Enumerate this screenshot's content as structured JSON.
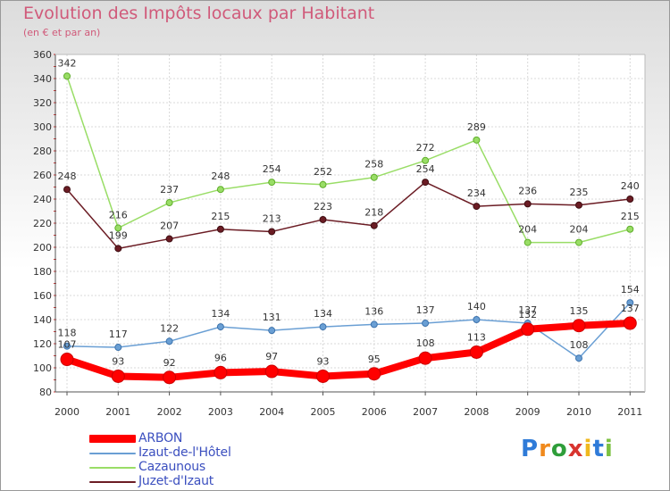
{
  "header": {
    "title": "Evolution des Impôts locaux par Habitant",
    "subtitle": "(en € et par an)"
  },
  "logo": {
    "text": "Proxiti"
  },
  "chart_data": {
    "type": "line",
    "title": "Evolution des Impôts locaux par Habitant",
    "subtitle": "(en € et par an)",
    "xlabel": "",
    "ylabel": "",
    "categories": [
      "2000",
      "2001",
      "2002",
      "2003",
      "2004",
      "2005",
      "2006",
      "2007",
      "2008",
      "2009",
      "2010",
      "2011"
    ],
    "ylim": [
      80,
      360
    ],
    "yticks": [
      80,
      100,
      120,
      140,
      160,
      180,
      200,
      220,
      240,
      260,
      280,
      300,
      320,
      340,
      360
    ],
    "grid": true,
    "legend_position": "bottom-left",
    "series": [
      {
        "name": "ARBON",
        "color": "#ff0000",
        "values": [
          107,
          93,
          92,
          96,
          97,
          93,
          95,
          108,
          113,
          132,
          135,
          137
        ]
      },
      {
        "name": "Izaut-de-l'Hôtel",
        "color": "#6a9fd4",
        "values": [
          118,
          117,
          122,
          134,
          131,
          134,
          136,
          137,
          140,
          137,
          108,
          154
        ]
      },
      {
        "name": "Cazaunous",
        "color": "#99dd66",
        "values": [
          342,
          216,
          237,
          248,
          254,
          252,
          258,
          272,
          289,
          204,
          204,
          215
        ]
      },
      {
        "name": "Juzet-d'Izaut",
        "color": "#6b1c24",
        "values": [
          248,
          199,
          207,
          215,
          213,
          223,
          218,
          254,
          234,
          236,
          235,
          240
        ]
      }
    ]
  }
}
